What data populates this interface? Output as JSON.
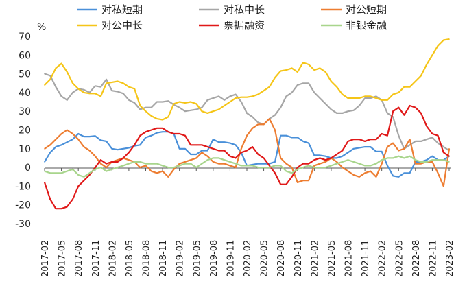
{
  "chart_data": {
    "type": "line",
    "y_unit": "%",
    "ylim": [
      -30,
      70
    ],
    "y_ticks": [
      70,
      60,
      50,
      40,
      30,
      20,
      10,
      0,
      -10,
      -20,
      -30
    ],
    "grid": false,
    "legend_placement": "top",
    "x_tick_labels": [
      "2017-02",
      "2017-05",
      "2017-08",
      "2017-11",
      "2018-02",
      "2018-05",
      "2018-08",
      "2018-11",
      "2019-02",
      "2019-05",
      "2019-08",
      "2019-11",
      "2020-02",
      "2020-05",
      "2020-08",
      "2020-11",
      "2021-02",
      "2021-05",
      "2021-08",
      "2021-11",
      "2022-02",
      "2022-05",
      "2022-08",
      "2022-11",
      "2023-02"
    ],
    "x": [
      "2017-02",
      "2017-03",
      "2017-04",
      "2017-05",
      "2017-06",
      "2017-07",
      "2017-08",
      "2017-09",
      "2017-10",
      "2017-11",
      "2017-12",
      "2018-01",
      "2018-02",
      "2018-03",
      "2018-04",
      "2018-05",
      "2018-06",
      "2018-07",
      "2018-08",
      "2018-09",
      "2018-10",
      "2018-11",
      "2018-12",
      "2019-01",
      "2019-02",
      "2019-03",
      "2019-04",
      "2019-05",
      "2019-06",
      "2019-07",
      "2019-08",
      "2019-09",
      "2019-10",
      "2019-11",
      "2019-12",
      "2020-01",
      "2020-02",
      "2020-03",
      "2020-04",
      "2020-05",
      "2020-06",
      "2020-07",
      "2020-08",
      "2020-09",
      "2020-10",
      "2020-11",
      "2020-12",
      "2021-01",
      "2021-02",
      "2021-03",
      "2021-04",
      "2021-05",
      "2021-06",
      "2021-07",
      "2021-08",
      "2021-09",
      "2021-10",
      "2021-11",
      "2021-12",
      "2022-01",
      "2022-02",
      "2022-03",
      "2022-04",
      "2022-05",
      "2022-06",
      "2022-07",
      "2022-08",
      "2022-09",
      "2022-10",
      "2022-11",
      "2022-12",
      "2023-01",
      "2023-02"
    ],
    "series": [
      {
        "name": "对私短期",
        "color": "#4a90d9",
        "values": [
          3,
          8,
          11,
          12,
          13.5,
          15,
          18,
          16.5,
          16.5,
          16.8,
          14.5,
          14,
          10,
          9.5,
          10,
          10.5,
          11.5,
          12,
          16,
          17,
          18.5,
          19,
          19,
          18,
          10,
          10,
          7,
          7,
          9,
          9,
          15,
          13.5,
          13.5,
          13,
          12,
          8,
          1,
          1.5,
          2,
          2,
          2,
          3,
          17,
          17,
          16,
          16,
          14,
          13,
          6.5,
          6.5,
          6,
          5,
          5,
          6,
          8,
          10,
          10.5,
          11,
          11,
          8.5,
          8.5,
          1,
          -4.5,
          -5,
          -3,
          -3,
          3,
          3,
          4,
          6,
          4,
          4,
          6
        ]
      },
      {
        "name": "对私中长",
        "color": "#a6a6a6",
        "values": [
          50,
          49,
          43,
          38,
          36,
          40,
          42,
          41.5,
          40,
          43.5,
          43,
          47,
          41,
          40.5,
          39.5,
          36,
          34.5,
          31,
          32,
          32,
          35,
          35,
          35.5,
          33.5,
          32,
          30,
          30.5,
          31,
          32,
          36,
          37,
          38,
          36,
          38,
          39,
          35,
          29,
          27,
          24,
          23,
          26,
          28,
          32,
          38,
          40,
          44,
          45,
          45,
          40,
          37,
          34,
          31,
          29,
          29,
          30,
          30.5,
          33,
          37,
          37,
          38,
          36,
          29,
          27,
          17,
          10,
          12,
          14,
          14,
          15,
          16,
          13,
          11,
          9
        ]
      },
      {
        "name": "对公短期",
        "color": "#ed7d31",
        "values": [
          10,
          12,
          15,
          18,
          20,
          18,
          15,
          11,
          9,
          6,
          2,
          0,
          3,
          4,
          5,
          4,
          3,
          0,
          1,
          -2,
          -3,
          -2,
          -5,
          -1,
          2,
          3,
          4,
          5,
          8,
          6,
          3,
          2,
          2,
          1,
          0,
          10,
          17,
          21,
          23,
          23,
          26,
          20,
          5,
          2,
          0,
          -8,
          -7,
          -7,
          1,
          2,
          3,
          5,
          3,
          0,
          -2,
          -4,
          -5,
          -3,
          -2,
          -5,
          2,
          11,
          13,
          9,
          10,
          15,
          2,
          2,
          3,
          3,
          -3,
          -10,
          10
        ]
      },
      {
        "name": "对公中长",
        "color": "#f5c518",
        "values": [
          44,
          47,
          53,
          55.5,
          51,
          45,
          42,
          40,
          39.5,
          39.5,
          38,
          45,
          45.5,
          46,
          45,
          43,
          42,
          33,
          30,
          27.5,
          26,
          25.5,
          27,
          34,
          35,
          34.5,
          35,
          34,
          30,
          29,
          30,
          31,
          33,
          35,
          37,
          37.5,
          37.5,
          38,
          39,
          41,
          43,
          48,
          51.5,
          52,
          53,
          51,
          56,
          55,
          52,
          53,
          51,
          46,
          43,
          39,
          37,
          37,
          37,
          38,
          38,
          37,
          36,
          36,
          39,
          40,
          43,
          43,
          46,
          49,
          55,
          60,
          65,
          68,
          68.5
        ]
      },
      {
        "name": "票据融资",
        "color": "#e01919",
        "values": [
          -8,
          -17,
          -22,
          -22,
          -21,
          -17,
          -10,
          -7,
          -4,
          0,
          4,
          2,
          3,
          3,
          5,
          8,
          12,
          17,
          19,
          20,
          21,
          21,
          19,
          18,
          18,
          17,
          12,
          12,
          12,
          11,
          10,
          9,
          9,
          6,
          5,
          8,
          9,
          11,
          7,
          5,
          1,
          -3,
          -9,
          -9,
          -5,
          0,
          2,
          2,
          4,
          5,
          4,
          5,
          7,
          9,
          14,
          15,
          15,
          14,
          15,
          15,
          18,
          17,
          30,
          32,
          28,
          33,
          32,
          29,
          22,
          18,
          17,
          8,
          6
        ]
      },
      {
        "name": "非银金融",
        "color": "#a8d58c",
        "values": [
          -2,
          -3,
          -3,
          -3,
          -2,
          -1,
          -4,
          -5,
          -3,
          -1,
          0,
          -2,
          -1,
          0,
          1,
          2,
          3,
          3,
          2,
          2,
          2,
          1,
          0,
          0,
          1,
          2,
          2,
          0,
          2,
          4,
          5,
          5,
          4,
          3,
          2,
          1,
          1,
          1,
          0,
          0,
          0,
          1,
          1,
          -2,
          -3,
          -1,
          0,
          1,
          0,
          0,
          0,
          1,
          2,
          3,
          4,
          3,
          2,
          1,
          1,
          2,
          4,
          5,
          5,
          6,
          5,
          6,
          4,
          3,
          3,
          4,
          4,
          4,
          3
        ]
      }
    ]
  }
}
